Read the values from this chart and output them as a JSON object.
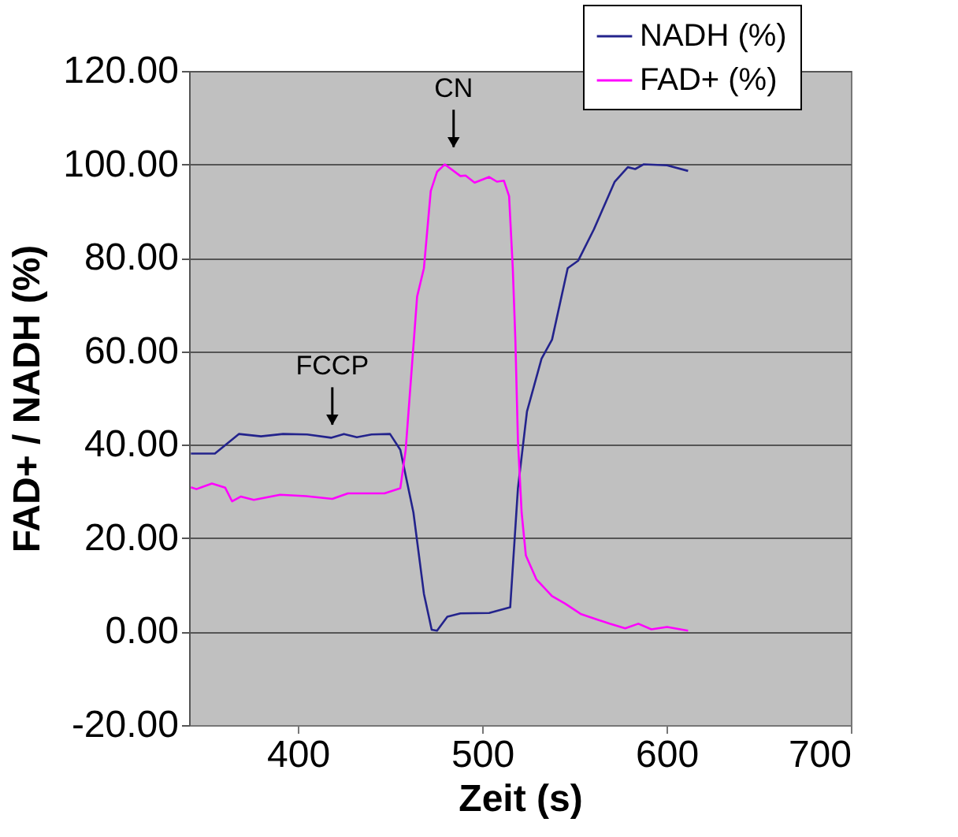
{
  "chart_data": {
    "type": "line",
    "xlabel": "Zeit (s)",
    "ylabel": "FAD+ / NADH (%)",
    "xlim": [
      341,
      700
    ],
    "xticks": [
      400,
      500,
      600,
      700
    ],
    "ylim": [
      -20,
      120
    ],
    "yticks": [
      {
        "value": -20,
        "label": "-20.00"
      },
      {
        "value": 0,
        "label": "0.00"
      },
      {
        "value": 20,
        "label": "20.00"
      },
      {
        "value": 40,
        "label": "40.00"
      },
      {
        "value": 60,
        "label": "60.00"
      },
      {
        "value": 80,
        "label": "80.00"
      },
      {
        "value": 100,
        "label": "100.00"
      },
      {
        "value": 120,
        "label": "120.00"
      }
    ],
    "grid": "y",
    "legend": "top right",
    "marker": "none",
    "line_style": "solid",
    "annotations": [
      {
        "text": "FCCP",
        "x": 418.7,
        "y": 41.6
      },
      {
        "text": "CN",
        "x": 484.5,
        "y": 101
      }
    ],
    "series": [
      {
        "name": "NADH (%)",
        "color": "#23238c",
        "x": [
          342,
          355,
          368,
          380,
          392,
          405,
          418,
          425,
          432,
          440,
          450,
          455.6,
          462.7,
          468.4,
          472.6,
          475.5,
          481.1,
          488.2,
          503.8,
          515.2,
          519.4,
          524.3,
          532.2,
          537.9,
          546.4,
          552.1,
          560.6,
          571.9,
          579,
          583,
          587.5,
          600.3,
          611.7
        ],
        "values": [
          38.1,
          38.1,
          42.3,
          41.8,
          42.3,
          42.2,
          41.5,
          42.3,
          41.6,
          42.2,
          42.3,
          38.9,
          25.5,
          8.1,
          0.4,
          0.2,
          3.2,
          3.9,
          4.0,
          5.2,
          30.7,
          47.1,
          58.4,
          62.5,
          77.8,
          79.4,
          86.1,
          96.3,
          99.4,
          99,
          100,
          99.8,
          98.6
        ]
      },
      {
        "name": "FAD+ (%)",
        "color": "#ff00ff",
        "x": [
          342,
          345,
          353.4,
          360.6,
          364.3,
          369,
          376.1,
          390.4,
          404.5,
          418.7,
          427.2,
          447,
          455.6,
          458.5,
          464.7,
          468.4,
          472.1,
          475.5,
          479.7,
          488.2,
          491,
          495.9,
          503.8,
          508,
          511.8,
          514.6,
          516.6,
          518,
          519.4,
          521.4,
          523.7,
          529.4,
          537.9,
          545,
          553.4,
          569.1,
          577.6,
          584.7,
          591.8,
          600.3,
          611.7
        ],
        "values": [
          30.9,
          30.5,
          31.7,
          30.8,
          27.9,
          28.9,
          28.2,
          29.3,
          29.0,
          28.4,
          29.6,
          29.6,
          30.7,
          38.9,
          71.7,
          77.8,
          94.3,
          98.4,
          100,
          97.5,
          97.6,
          96.1,
          97.3,
          96.3,
          96.5,
          93.2,
          77.8,
          62.5,
          40.9,
          25.5,
          16.3,
          11.2,
          7.6,
          6.0,
          3.8,
          1.7,
          0.7,
          1.7,
          0.5,
          1.0,
          0.2
        ]
      }
    ]
  }
}
